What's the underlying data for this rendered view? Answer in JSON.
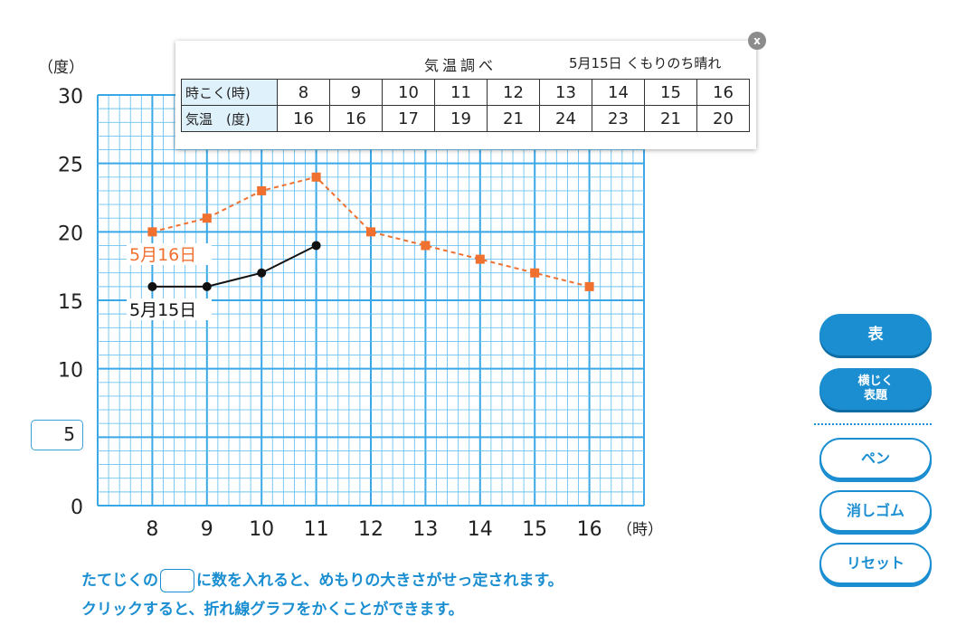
{
  "y_unit_label": "（度）",
  "x_unit_label": "（時）",
  "scale_input_value": "5",
  "chart_data": {
    "type": "line",
    "x": [
      8,
      9,
      10,
      11,
      12,
      13,
      14,
      15,
      16
    ],
    "xlim": [
      7,
      17
    ],
    "ylim": [
      0,
      30
    ],
    "y_ticks": [
      0,
      5,
      10,
      15,
      20,
      25,
      30
    ],
    "x_tick_labels": [
      "8",
      "9",
      "10",
      "11",
      "12",
      "13",
      "14",
      "15",
      "16"
    ],
    "y_tick_labels": [
      "0",
      "5",
      "10",
      "15",
      "20",
      "25",
      "30"
    ],
    "grid": true,
    "series": [
      {
        "name": "5月16日",
        "x": [
          8,
          9,
          10,
          11,
          12,
          13,
          14,
          15,
          16
        ],
        "values": [
          20,
          21,
          23,
          24,
          20,
          19,
          18,
          17,
          16
        ],
        "color": "#f07030",
        "style": "dashed",
        "marker": "square"
      },
      {
        "name": "5月15日",
        "x": [
          8,
          9,
          10,
          11
        ],
        "values": [
          16,
          16,
          17,
          19
        ],
        "color": "#111111",
        "style": "solid",
        "marker": "circle"
      }
    ]
  },
  "table": {
    "title": "気温調べ",
    "date_weather": "5月15日 くもりのち晴れ",
    "row_time_label": "時こく(時)",
    "row_temp_label": "気温　(度)",
    "times": [
      "8",
      "9",
      "10",
      "11",
      "12",
      "13",
      "14",
      "15",
      "16"
    ],
    "temps": [
      "16",
      "16",
      "17",
      "19",
      "21",
      "24",
      "23",
      "21",
      "20"
    ],
    "close_label": "x"
  },
  "instructions": {
    "line1_before": "たてじくの",
    "line1_after": "に数を入れると、めもりの大きさがせっ定されます。",
    "line2": "クリックすると、折れ線グラフをかくことができます。"
  },
  "buttons": {
    "table": "表",
    "axis_line1": "横じく",
    "axis_line2": "表題",
    "pen": "ペン",
    "eraser": "消しゴム",
    "reset": "リセット"
  },
  "colors": {
    "grid_line": "#6cc3f0",
    "grid_line_thick": "#3aa8e6",
    "accent": "#1a8ed1",
    "series_orange": "#f07030"
  }
}
